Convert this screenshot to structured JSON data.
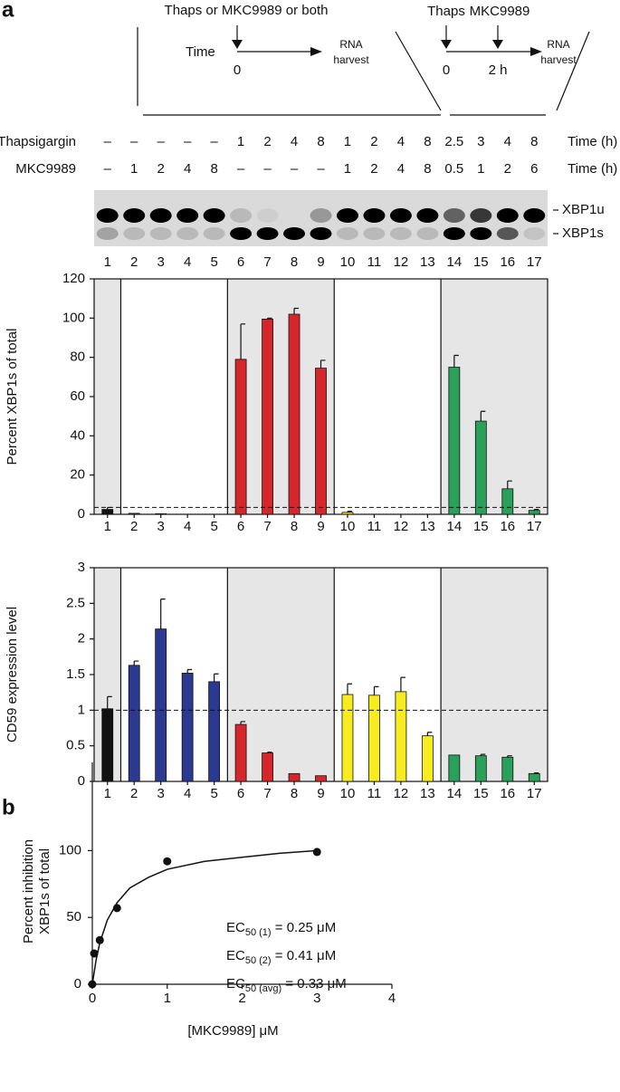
{
  "panel_labels": [
    "a",
    "b"
  ],
  "timeline": {
    "left": {
      "title": "Thaps or MKC9989 or both",
      "axis_label": "Time",
      "start": "0",
      "end": [
        "RNA",
        "harvest"
      ]
    },
    "right": {
      "first": "Thaps",
      "second": "MKC9989",
      "start": "0",
      "mid": "2 h",
      "end": [
        "RNA",
        "harvest"
      ]
    }
  },
  "treatments": {
    "rows": [
      {
        "label": "Thapsigargin",
        "cells": [
          "–",
          "–",
          "–",
          "–",
          "–",
          "1",
          "2",
          "4",
          "8",
          "1",
          "2",
          "4",
          "8",
          "2.5",
          "3",
          "4",
          "8"
        ],
        "unit": "Time (h)"
      },
      {
        "label": "MKC9989",
        "cells": [
          "–",
          "1",
          "2",
          "4",
          "8",
          "–",
          "–",
          "–",
          "–",
          "1",
          "2",
          "4",
          "8",
          "0.5",
          "1",
          "2",
          "6"
        ],
        "unit": "Time (h)"
      }
    ]
  },
  "gel": {
    "lanes": [
      "1",
      "2",
      "3",
      "4",
      "5",
      "6",
      "7",
      "8",
      "9",
      "10",
      "11",
      "12",
      "13",
      "14",
      "15",
      "16",
      "17"
    ],
    "bands": [
      "XBP1u",
      "XBP1s"
    ]
  },
  "chart_data": [
    {
      "type": "bar",
      "ylabel": "Percent XBP1s of total",
      "categories": [
        "1",
        "2",
        "3",
        "4",
        "5",
        "6",
        "7",
        "8",
        "9",
        "10",
        "11",
        "12",
        "13",
        "14",
        "15",
        "16",
        "17"
      ],
      "values": [
        2.5,
        0.5,
        0.3,
        0,
        0,
        79,
        99.5,
        102,
        74.5,
        1,
        0,
        0,
        0,
        75,
        47.5,
        13,
        2
      ],
      "errors": [
        1,
        null,
        null,
        null,
        null,
        18,
        0.5,
        3,
        4,
        0.5,
        null,
        null,
        null,
        6,
        5,
        4,
        0.5
      ],
      "colors": [
        "#111111",
        "#2b3990",
        "#2b3990",
        "#2b3990",
        "#2b3990",
        "#d7262b",
        "#d7262b",
        "#d7262b",
        "#d7262b",
        "#f7ec1d",
        "#f7ec1d",
        "#f7ec1d",
        "#f7ec1d",
        "#2aa15a",
        "#2aa15a",
        "#2aa15a",
        "#2aa15a"
      ],
      "ylim": [
        0,
        120
      ],
      "yticks": [
        0,
        20,
        40,
        60,
        80,
        100,
        120
      ],
      "reference_line": 3.5
    },
    {
      "type": "bar",
      "ylabel": "CD59 expression level",
      "categories": [
        "1",
        "2",
        "3",
        "4",
        "5",
        "6",
        "7",
        "8",
        "9",
        "10",
        "11",
        "12",
        "13",
        "14",
        "15",
        "16",
        "17"
      ],
      "values": [
        1.02,
        1.63,
        2.14,
        1.52,
        1.4,
        0.8,
        0.4,
        0.11,
        0.08,
        1.22,
        1.21,
        1.26,
        0.64,
        0.37,
        0.36,
        0.34,
        0.11
      ],
      "errors": [
        0.17,
        0.06,
        0.42,
        0.05,
        0.11,
        0.04,
        0.01,
        null,
        null,
        0.15,
        0.12,
        0.2,
        0.05,
        null,
        0.02,
        0.02,
        0.01
      ],
      "colors": [
        "#111111",
        "#2b3990",
        "#2b3990",
        "#2b3990",
        "#2b3990",
        "#d7262b",
        "#d7262b",
        "#d7262b",
        "#d7262b",
        "#f7ec1d",
        "#f7ec1d",
        "#f7ec1d",
        "#f7ec1d",
        "#2aa15a",
        "#2aa15a",
        "#2aa15a",
        "#2aa15a"
      ],
      "ylim": [
        0,
        3
      ],
      "yticks": [
        0,
        0.5,
        1,
        1.5,
        2,
        2.5,
        3
      ],
      "reference_line": 1
    },
    {
      "type": "scatter",
      "ylabel": [
        "Percent inhibition",
        "XBP1s of total"
      ],
      "xlabel": "[MKC9989] μM",
      "x": [
        0,
        0.025,
        0.1,
        0.33,
        1,
        3
      ],
      "values": [
        0,
        23,
        33,
        57,
        92,
        99
      ],
      "color": "#111111",
      "fit": {
        "x": [
          0,
          0.05,
          0.1,
          0.2,
          0.33,
          0.5,
          0.75,
          1,
          1.5,
          2,
          2.5,
          3
        ],
        "values": [
          0,
          18,
          31,
          48,
          61,
          72,
          80,
          86,
          92,
          95,
          98,
          100
        ]
      },
      "xlim": [
        0,
        4
      ],
      "ylim": [
        0,
        166
      ],
      "xticks": [
        0,
        1,
        2,
        3,
        4
      ],
      "yticks": [
        0,
        50,
        100
      ],
      "annotations": [
        {
          "text": "EC",
          "sub": "50 (1)",
          "rest": " = 0.25 μM"
        },
        {
          "text": "EC",
          "sub": "50 (2)",
          "rest": " = 0.41 μM"
        },
        {
          "text": "EC",
          "sub": "50 (avg)",
          "rest": " = 0.33 μM"
        }
      ]
    }
  ]
}
